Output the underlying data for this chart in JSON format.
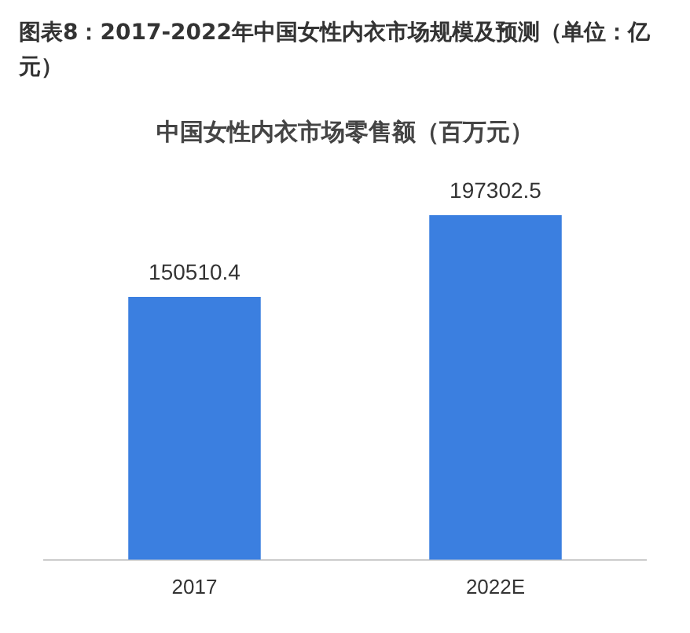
{
  "chart_data": {
    "type": "bar",
    "title": "图表8：2017-2022年中国女性内衣市场规模及预测（单位：亿元）",
    "subtitle": "中国女性内衣市场零售额（百万元）",
    "categories": [
      "2017",
      "2022E"
    ],
    "values": [
      150510.4,
      197302.5
    ],
    "color": "#3b7fe0",
    "data_labels": true,
    "grid": false,
    "legend": false
  }
}
